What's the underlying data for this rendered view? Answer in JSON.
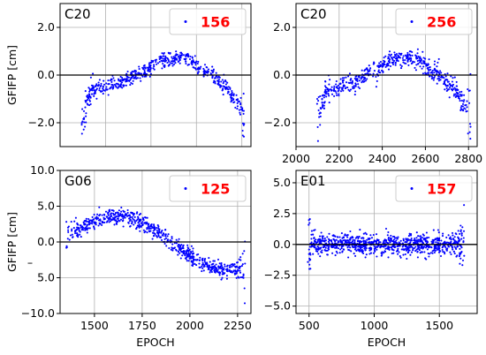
{
  "chart_data": [
    {
      "type": "scatter",
      "panel_label": "C20",
      "legend": "156",
      "xlabel": "",
      "ylabel": "GFIFP [cm]",
      "xlim": [
        2000,
        2840
      ],
      "ylim": [
        -3.0,
        3.0
      ],
      "xticks": [],
      "xtick_labels": [],
      "yticks": [
        -2.0,
        0.0,
        2.0
      ],
      "ytick_labels": [
        "−2.0",
        "0.0",
        "2.0"
      ],
      "zero_line": true,
      "grid": true,
      "series": [
        {
          "color": "#0000ff",
          "x_range": [
            2095,
            2810
          ],
          "trend": "c20",
          "n": 560,
          "noise": 0.16,
          "seed": 11
        }
      ]
    },
    {
      "type": "scatter",
      "panel_label": "C20",
      "legend": "256",
      "xlabel": "",
      "ylabel": "",
      "xlim": [
        2000,
        2840
      ],
      "ylim": [
        -3.0,
        3.0
      ],
      "xticks": [
        2000,
        2200,
        2400,
        2600,
        2800
      ],
      "xtick_labels": [
        "2000",
        "2200",
        "2400",
        "2600",
        "2800"
      ],
      "yticks": [
        -2.0,
        0.0,
        2.0
      ],
      "ytick_labels": [
        "−2.0",
        "0.0",
        "2.0"
      ],
      "zero_line": true,
      "grid": true,
      "series": [
        {
          "color": "#0000ff",
          "x_range": [
            2095,
            2810
          ],
          "trend": "c20",
          "n": 560,
          "noise": 0.18,
          "seed": 23
        }
      ]
    },
    {
      "type": "scatter",
      "panel_label": "G06",
      "legend": "125",
      "xlabel": "EPOCH",
      "ylabel": "GFIFP [cm]",
      "xlim": [
        1320,
        2320
      ],
      "ylim": [
        -10.0,
        10.0
      ],
      "xticks": [
        1500,
        1750,
        2000,
        2250
      ],
      "xtick_labels": [
        "1500",
        "1750",
        "2000",
        "2250"
      ],
      "yticks": [
        -10.0,
        -5.0,
        0.0,
        5.0,
        10.0
      ],
      "ytick_labels": [
        "−10.0",
        "5.0",
        "0.0",
        "5.0",
        "10.0"
      ],
      "extra_ytick_label": "–",
      "zero_line": true,
      "grid": true,
      "series": [
        {
          "color": "#0000ff",
          "x_range": [
            1350,
            2290
          ],
          "trend": "g06",
          "n": 700,
          "noise": 0.55,
          "seed": 37
        }
      ]
    },
    {
      "type": "scatter",
      "panel_label": "E01",
      "legend": "157",
      "xlabel": "EPOCH",
      "ylabel": "",
      "xlim": [
        400,
        1790
      ],
      "ylim": [
        -5.6,
        6.0
      ],
      "xticks": [
        500,
        1000,
        1500
      ],
      "xtick_labels": [
        "500",
        "1000",
        "1500"
      ],
      "yticks": [
        -5.0,
        -2.5,
        0.0,
        2.5,
        5.0
      ],
      "ytick_labels": [
        "−5.0",
        "−2.5",
        "0.0",
        "2.5",
        "5.0"
      ],
      "zero_line": true,
      "grid": true,
      "series": [
        {
          "color": "#0000ff",
          "x_range": [
            490,
            1690
          ],
          "trend": "e01",
          "n": 900,
          "noise": 0.42,
          "seed": 53
        }
      ]
    }
  ],
  "style": {
    "point_color": "#0000ff",
    "legend_text_color": "#ff0000",
    "zero_line_color": "#000000",
    "grid_color": "#b0b0b0"
  }
}
